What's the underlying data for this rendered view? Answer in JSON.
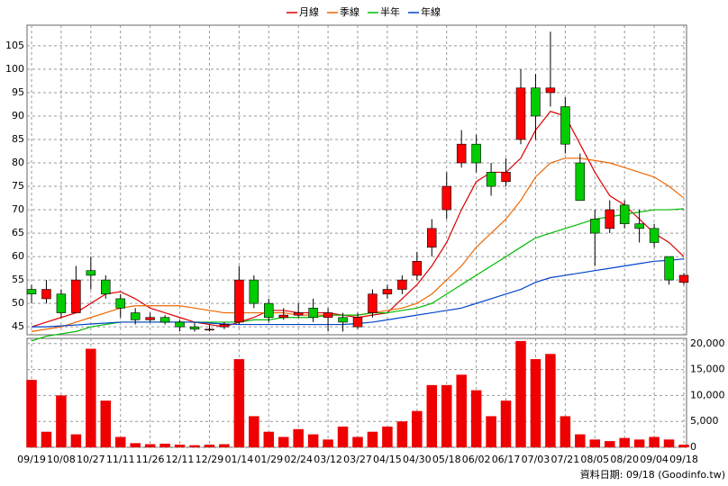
{
  "chart_data": {
    "type": "candlestick",
    "categories": [
      "09/19",
      null,
      "10/08",
      null,
      "10/27",
      null,
      "11/11",
      null,
      "11/26",
      null,
      "12/11",
      null,
      "12/29",
      null,
      "01/14",
      null,
      "01/29",
      null,
      "02/24",
      null,
      "03/12",
      null,
      "03/27",
      null,
      "04/15",
      null,
      "04/30",
      null,
      "05/18",
      null,
      "06/02",
      null,
      "06/17",
      null,
      "07/03",
      null,
      "07/21",
      null,
      "08/05",
      null,
      "08/20",
      null,
      "09/04",
      null,
      "09/18"
    ],
    "ohlc": [
      [
        53,
        54,
        50,
        52
      ],
      [
        51,
        55,
        50,
        53
      ],
      [
        52,
        53,
        47,
        48
      ],
      [
        48,
        58,
        48,
        55
      ],
      [
        57,
        60,
        53,
        56
      ],
      [
        55,
        56,
        51,
        52
      ],
      [
        51,
        52,
        47,
        49
      ],
      [
        48,
        49,
        45.5,
        46.5
      ],
      [
        46.5,
        48,
        46,
        47
      ],
      [
        47,
        47.5,
        45.5,
        46
      ],
      [
        46,
        46.5,
        44,
        45
      ],
      [
        45,
        46,
        44,
        44.5
      ],
      [
        44.5,
        45.5,
        44,
        44.5
      ],
      [
        45,
        46,
        44.5,
        45.5
      ],
      [
        46,
        58,
        45.5,
        55
      ],
      [
        55,
        56,
        49,
        50
      ],
      [
        50,
        51,
        46,
        47
      ],
      [
        47,
        49,
        46.5,
        47.5
      ],
      [
        47.5,
        50,
        47,
        48
      ],
      [
        49,
        51,
        46,
        47
      ],
      [
        47,
        49,
        44,
        48
      ],
      [
        47,
        48,
        44,
        46
      ],
      [
        45,
        48,
        44.5,
        47
      ],
      [
        48,
        53,
        47,
        52
      ],
      [
        52,
        54,
        51,
        53
      ],
      [
        53,
        56,
        52,
        55
      ],
      [
        56,
        61,
        55,
        59
      ],
      [
        62,
        68,
        60,
        66
      ],
      [
        70,
        78,
        68,
        75
      ],
      [
        80,
        87,
        79,
        84
      ],
      [
        84,
        86,
        78,
        80
      ],
      [
        78,
        80,
        73,
        75
      ],
      [
        76,
        81,
        75,
        78
      ],
      [
        85,
        100,
        84,
        96
      ],
      [
        96,
        99,
        85,
        90
      ],
      [
        95,
        108,
        92,
        96
      ],
      [
        92,
        94,
        82,
        84
      ],
      [
        80,
        82,
        72,
        72
      ],
      [
        68,
        70,
        58,
        65
      ],
      [
        66,
        72,
        65,
        70
      ],
      [
        71,
        72,
        66,
        67
      ],
      [
        67,
        70,
        63,
        66
      ],
      [
        66,
        67,
        62,
        63
      ],
      [
        60,
        60,
        54,
        55
      ],
      [
        54.5,
        56.5,
        54,
        56
      ]
    ],
    "up_color": "#ff0000",
    "down_color": "#00cc00",
    "volume": [
      13000,
      3000,
      10000,
      2500,
      19000,
      9000,
      2000,
      800,
      600,
      700,
      500,
      400,
      500,
      600,
      17000,
      6000,
      3000,
      2000,
      3500,
      2500,
      1500,
      4000,
      2000,
      3000,
      4000,
      5000,
      7000,
      12000,
      12000,
      14000,
      11000,
      6000,
      9000,
      20500,
      17000,
      18000,
      6000,
      2500,
      1500,
      1200,
      1800,
      1500,
      2000,
      1500,
      500
    ],
    "volume_color": "#ee0000",
    "series": [
      {
        "name": "月線",
        "color": "#dd0000",
        "values": [
          45,
          46,
          47,
          48,
          50,
          52,
          52.5,
          51,
          49,
          48,
          47,
          46,
          45.5,
          45,
          46,
          47,
          48.5,
          48.5,
          48,
          48,
          48,
          47.5,
          47,
          47.5,
          48,
          51,
          54,
          58,
          63,
          70,
          76,
          78,
          78,
          81,
          87,
          91,
          90,
          84,
          78,
          73,
          71,
          68,
          65,
          63,
          60
        ]
      },
      {
        "name": "季線",
        "color": "#ee6600",
        "values": [
          44,
          44.5,
          45,
          46,
          47,
          48,
          49,
          49.5,
          49.5,
          49.5,
          49.5,
          49,
          48.5,
          48,
          48,
          48,
          48,
          48,
          47.5,
          47.5,
          47.5,
          47.5,
          47.5,
          48,
          48.5,
          49,
          50,
          52,
          55,
          58,
          62,
          65,
          68,
          72,
          77,
          80,
          81,
          81,
          80.5,
          80,
          79,
          78,
          77,
          75,
          72.5
        ]
      },
      {
        "name": "半年",
        "color": "#00bb00",
        "values": [
          42,
          43,
          43.5,
          44,
          45,
          45.5,
          46,
          46,
          46,
          46,
          46,
          46,
          46,
          46,
          46,
          46.5,
          46.5,
          47,
          47,
          47,
          47.5,
          47.5,
          47.5,
          48,
          48,
          48.5,
          49,
          50,
          52,
          54,
          56,
          58,
          60,
          62,
          64,
          65,
          66,
          67,
          68,
          68.5,
          69,
          69.5,
          70,
          70,
          70.2
        ]
      },
      {
        "name": "年線",
        "color": "#0044cc",
        "values": [
          45,
          45,
          45.2,
          45.4,
          45.6,
          45.8,
          46,
          46,
          46,
          46,
          46,
          46,
          45.8,
          45.6,
          45.5,
          45.5,
          45.5,
          45.5,
          45.5,
          45.5,
          45.5,
          45.5,
          45.7,
          46,
          46.5,
          47,
          47.5,
          48,
          48.5,
          49,
          50,
          51,
          52,
          53,
          54.5,
          55.5,
          56,
          56.5,
          57,
          57.5,
          58,
          58.5,
          59,
          59.2,
          59.5
        ]
      }
    ],
    "ylim": [
      43.3,
      109.4
    ],
    "yticks": [
      45,
      50,
      55,
      60,
      65,
      70,
      75,
      80,
      85,
      90,
      95,
      100,
      105
    ],
    "y2lim": [
      0,
      21000
    ],
    "y2ticks": [
      0,
      {
        "value": 5000,
        "label": "5,000"
      },
      {
        "value": 10000,
        "label": "10,000"
      },
      {
        "value": 15000,
        "label": "15,000"
      },
      {
        "value": 20000,
        "label": "20,000"
      }
    ],
    "grid": true,
    "footnote": "資料日期: 09/18 (Goodinfo.tw)"
  }
}
